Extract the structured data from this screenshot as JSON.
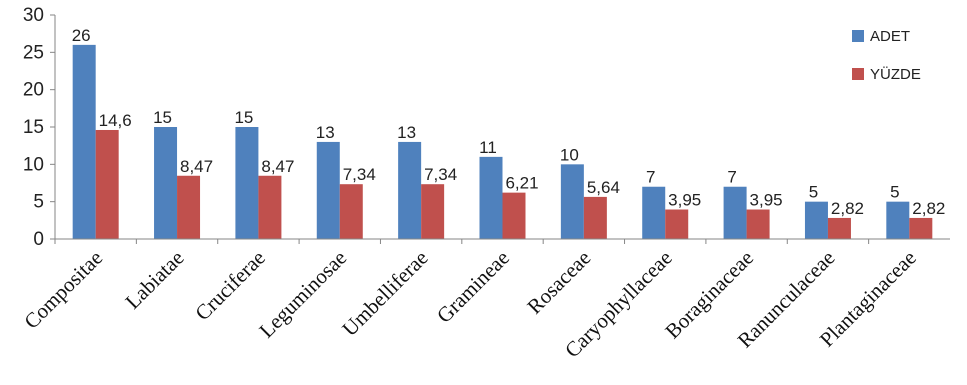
{
  "chart_data": {
    "type": "bar",
    "categories": [
      "Compositae",
      "Labiatae",
      "Cruciferae",
      "Leguminosae",
      "Umbelliferae",
      "Gramineae",
      "Rosaceae",
      "Caryophyllaceae",
      "Boraginaceae",
      "Ranunculaceae",
      "Plantaginaceae"
    ],
    "series": [
      {
        "name": "ADET",
        "color": "#4F81BD",
        "values": [
          26,
          15,
          15,
          13,
          13,
          11,
          10,
          7,
          7,
          5,
          5
        ],
        "labels": [
          "26",
          "15",
          "15",
          "13",
          "13",
          "11",
          "10",
          "7",
          "7",
          "5",
          "5"
        ]
      },
      {
        "name": "YÜZDE",
        "color": "#C0504D",
        "values": [
          14.6,
          8.47,
          8.47,
          7.34,
          7.34,
          6.21,
          5.64,
          3.95,
          3.95,
          2.82,
          2.82
        ],
        "labels": [
          "14,6",
          "8,47",
          "8,47",
          "7,34",
          "7,34",
          "6,21",
          "5,64",
          "3,95",
          "3,95",
          "2,82",
          "2,82"
        ]
      }
    ],
    "ylim": [
      0,
      30
    ],
    "yticks": [
      0,
      5,
      10,
      15,
      20,
      25,
      30
    ],
    "grid": false,
    "legend_position": "top-right"
  }
}
